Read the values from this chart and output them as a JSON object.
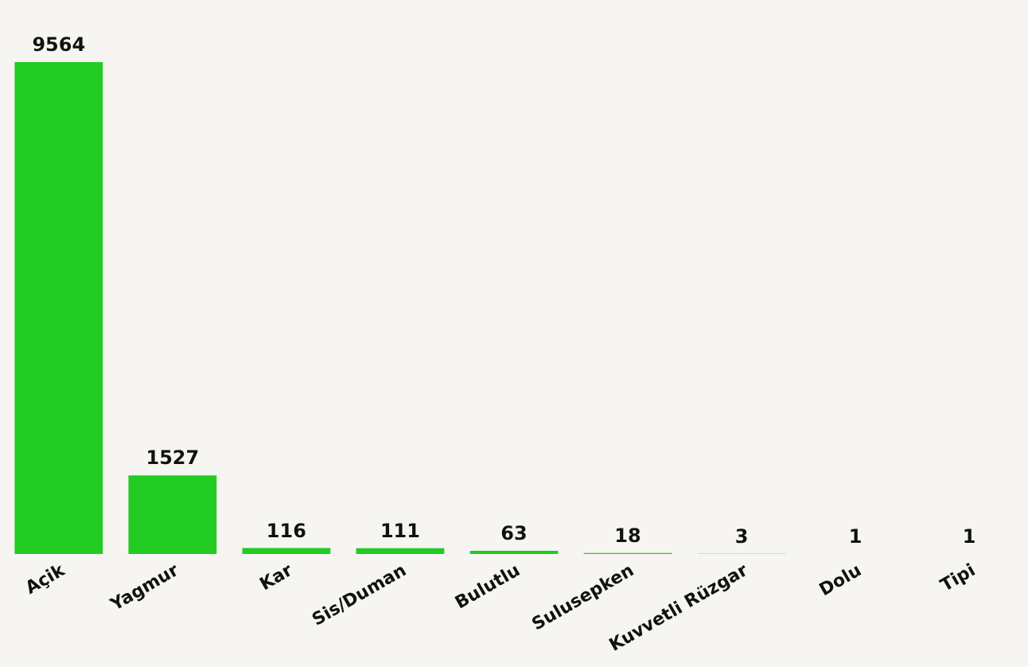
{
  "chart_data": {
    "type": "bar",
    "categories": [
      "Açik",
      "Yagmur",
      "Kar",
      "Sis/Duman",
      "Bulutlu",
      "Sulusepken",
      "Kuvvetli Rüzgar",
      "Dolu",
      "Tipi"
    ],
    "values": [
      9564,
      1527,
      116,
      111,
      63,
      18,
      3,
      1,
      1
    ],
    "color": "#22cc22",
    "relative": false,
    "data_labels": true,
    "grid": false
  }
}
